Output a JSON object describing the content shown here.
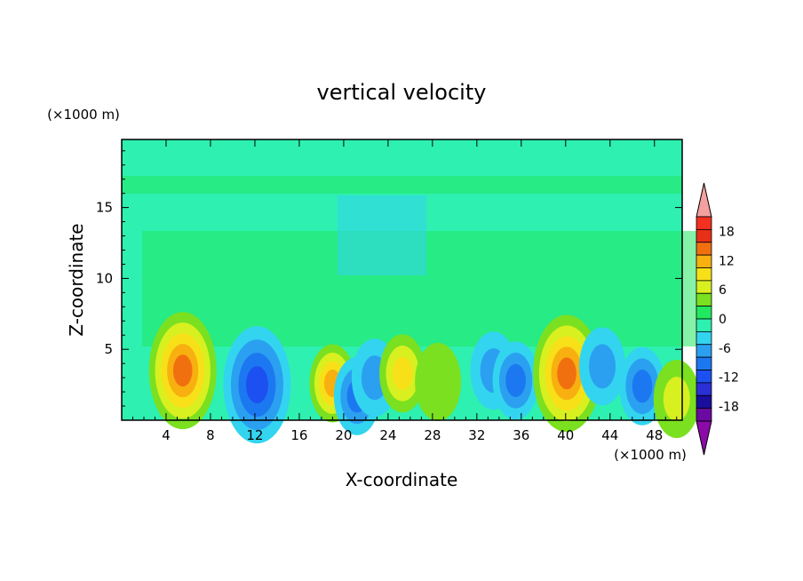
{
  "chart_data": {
    "type": "heatmap",
    "title": "vertical velocity",
    "xlabel": "X-coordinate",
    "ylabel": "Z-coordinate",
    "x_unit_label": "(×1000 m)",
    "y_unit_label": "(×1000 m)",
    "x_ticks": [
      4,
      8,
      12,
      16,
      20,
      24,
      28,
      32,
      36,
      40,
      44,
      48
    ],
    "y_ticks": [
      5,
      10,
      15
    ],
    "xlim": [
      0,
      50.5
    ],
    "ylim": [
      0,
      19.8
    ],
    "grid": false,
    "colorbar": {
      "tick_labels": [
        "18",
        "12",
        "6",
        "0",
        "-6",
        "-12",
        "-18"
      ],
      "tick_values": [
        18,
        12,
        6,
        0,
        -6,
        -12,
        -18
      ],
      "levels": [
        -21,
        -18,
        -15,
        -12,
        -9,
        -6,
        -3,
        0,
        3,
        6,
        9,
        12,
        15,
        18,
        21
      ],
      "colors": [
        "#6a0aa0",
        "#1a0e9c",
        "#2b2fd6",
        "#1d50f0",
        "#1c78f0",
        "#2ba0f0",
        "#33d4f0",
        "#2ef0b0",
        "#22e860",
        "#7ae020",
        "#d8f020",
        "#f8e018",
        "#f8b010",
        "#f07010",
        "#e83018",
        "#f43020"
      ],
      "under_color": "#8b0aa8",
      "over_color": "#f4a0a0"
    },
    "features": [
      {
        "kind": "updraft",
        "x": 5.5,
        "z": 3.5,
        "peak": 16
      },
      {
        "kind": "downdraft",
        "x": 12.2,
        "z": 2.5,
        "peak": -13
      },
      {
        "kind": "updraft",
        "x": 19.0,
        "z": 2.6,
        "peak": 12
      },
      {
        "kind": "downdraft",
        "x": 21.2,
        "z": 1.7,
        "peak": -10
      },
      {
        "kind": "downdraft",
        "x": 22.8,
        "z": 3.0,
        "peak": -8
      },
      {
        "kind": "updraft",
        "x": 25.3,
        "z": 3.3,
        "peak": 9
      },
      {
        "kind": "updraft",
        "x": 28.5,
        "z": 2.7,
        "peak": 5
      },
      {
        "kind": "downdraft",
        "x": 33.5,
        "z": 3.5,
        "peak": -7
      },
      {
        "kind": "downdraft",
        "x": 35.5,
        "z": 2.8,
        "peak": -10
      },
      {
        "kind": "updraft",
        "x": 40.1,
        "z": 3.3,
        "peak": 15
      },
      {
        "kind": "downdraft",
        "x": 43.3,
        "z": 3.8,
        "peak": -6
      },
      {
        "kind": "downdraft",
        "x": 46.9,
        "z": 2.4,
        "peak": -11
      },
      {
        "kind": "updraft",
        "x": 50.0,
        "z": 1.5,
        "peak": 7
      }
    ]
  }
}
